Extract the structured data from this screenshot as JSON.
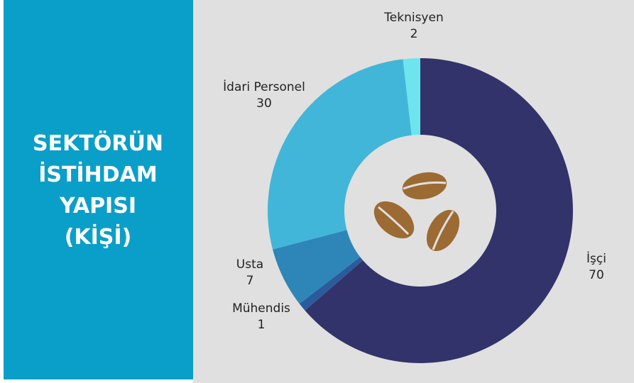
{
  "chart_data": {
    "type": "donut",
    "title": "SEKTÖRÜN İSTİHDAM YAPISI (KİŞİ)",
    "categories": [
      "İşçi",
      "Mühendis",
      "Usta",
      "İdari Personel",
      "Teknisyen"
    ],
    "values": [
      70,
      1,
      7,
      30,
      2
    ],
    "colors": [
      "#32336a",
      "#2c5b9c",
      "#2e86b8",
      "#42b6d8",
      "#6ee5ee"
    ]
  }
}
